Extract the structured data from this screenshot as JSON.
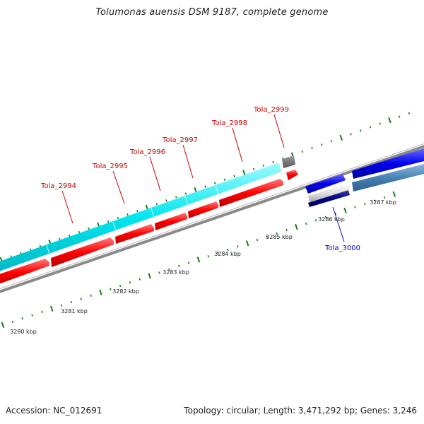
{
  "title": "Tolumonas auensis DSM 9187, complete genome",
  "footer": {
    "accession": "Accession: NC_012691",
    "summary": "Topology: circular; Length: 3,471,292 bp; Genes: 3,246"
  },
  "colors": {
    "gene_label": "#cc0000",
    "locus_label_blue": "#0000cc",
    "tick": "#1a7a1a",
    "cds": "#ff0000",
    "gene": "#00e5ee",
    "backbone": "#888888"
  },
  "gene_labels": [
    {
      "name": "Tola_2994",
      "color": "red"
    },
    {
      "name": "Tola_2995",
      "color": "red"
    },
    {
      "name": "Tola_2996",
      "color": "red"
    },
    {
      "name": "Tola_2997",
      "color": "red"
    },
    {
      "name": "Tola_2998",
      "color": "red"
    },
    {
      "name": "Tola_2999",
      "color": "red"
    },
    {
      "name": "Tola_3000",
      "color": "blue"
    }
  ],
  "kbp_labels": [
    "3280 kbp",
    "3281 kbp",
    "3282 kbp",
    "3283 kbp",
    "3284 kbp",
    "3285 kbp",
    "3286 kbp",
    "3287 kbp"
  ]
}
